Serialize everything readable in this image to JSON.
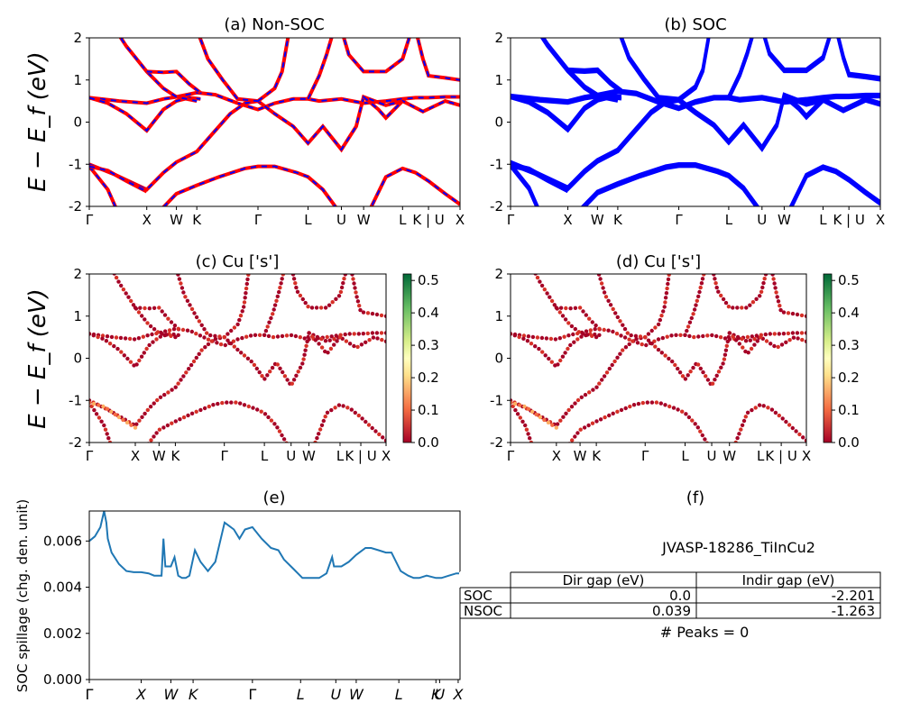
{
  "band_panels": [
    {
      "id": "a",
      "title": "(a) Non-SOC",
      "style": "nonsoc",
      "ylabel": "E − E_f (eV)",
      "ylim": [
        -2,
        2
      ],
      "yticks": [
        -2,
        -1,
        0,
        1,
        2
      ],
      "kpath": [
        "Γ",
        "X",
        "W",
        "K",
        "Γ",
        "L",
        "U",
        "W",
        "L",
        "K | U",
        "X"
      ]
    },
    {
      "id": "b",
      "title": "(b) SOC",
      "style": "soc",
      "ylabel": "",
      "ylim": [
        -2,
        2
      ],
      "yticks": [
        -2,
        -1,
        0,
        1,
        2
      ],
      "kpath": [
        "Γ",
        "X",
        "W",
        "K",
        "Γ",
        "L",
        "U",
        "W",
        "L",
        "K | U",
        "X"
      ]
    },
    {
      "id": "c",
      "title": "(c)  Cu ['s']",
      "style": "proj",
      "ylabel": "E − E_f (eV)",
      "ylim": [
        -2,
        2
      ],
      "yticks": [
        -2,
        -1,
        0,
        1,
        2
      ],
      "kpath": [
        "Γ",
        "X",
        "W",
        "K",
        "Γ",
        "L",
        "U",
        "W",
        "L",
        "K | U",
        "X"
      ],
      "colorbar_ticks": [
        "0.0",
        "0.1",
        "0.2",
        "0.3",
        "0.4",
        "0.5"
      ]
    },
    {
      "id": "d",
      "title": "(d) Cu ['s']",
      "style": "proj",
      "ylabel": "",
      "ylim": [
        -2,
        2
      ],
      "yticks": [
        -2,
        -1,
        0,
        1,
        2
      ],
      "kpath": [
        "Γ",
        "X",
        "W",
        "K",
        "Γ",
        "L",
        "U",
        "W",
        "L",
        "K | U",
        "X"
      ],
      "colorbar_ticks": [
        "0.0",
        "0.1",
        "0.2",
        "0.3",
        "0.4",
        "0.5"
      ]
    }
  ],
  "chart_data": [
    {
      "type": "line",
      "title": "(a) Non-SOC",
      "ylabel": "E − E_f (eV)",
      "ylim": [
        -2,
        2
      ],
      "x_ticks": [
        "Γ",
        "X",
        "W",
        "K",
        "Γ",
        "L",
        "U",
        "W",
        "L",
        "K | U",
        "X"
      ],
      "series": [
        {
          "values_by_tick": [
            0.58,
            0.45,
            0.6,
            0.7,
            0.3,
            0.55,
            0.55,
            0.45,
            0.55,
            0.58,
            0.6
          ]
        },
        {
          "values_by_tick": [
            -1.0,
            -1.6,
            -1.2,
            -0.7,
            0.5,
            -0.5,
            -0.65,
            0.6,
            -1.1,
            -1.3,
            -1.95
          ]
        }
      ]
    },
    {
      "type": "line",
      "title": "(b) SOC",
      "ylim": [
        -2,
        2
      ],
      "x_ticks": [
        "Γ",
        "X",
        "W",
        "K",
        "Γ",
        "L",
        "U",
        "W",
        "L",
        "K | U",
        "X"
      ]
    },
    {
      "type": "scatter",
      "title": "(c)  Cu ['s']",
      "ylim": [
        -2,
        2
      ],
      "colorbar_range": [
        0.0,
        0.5
      ]
    },
    {
      "type": "scatter",
      "title": "(d) Cu ['s']",
      "ylim": [
        -2,
        2
      ],
      "colorbar_range": [
        0.0,
        0.5
      ]
    },
    {
      "type": "line",
      "title": "(e)",
      "ylabel": "SOC spillage (chg. den. unit)",
      "ylim": [
        0.0,
        0.0073
      ],
      "yticks": [
        "0.000",
        "0.002",
        "0.004",
        "0.006"
      ],
      "x_ticks": [
        "Γ",
        "X",
        "W",
        "K",
        "Γ",
        "L",
        "U",
        "W",
        "L",
        "K",
        "U",
        "X"
      ],
      "x": [
        0,
        0.015,
        0.03,
        0.04,
        0.046,
        0.05,
        0.06,
        0.08,
        0.1,
        0.12,
        0.14,
        0.16,
        0.175,
        0.195,
        0.2,
        0.205,
        0.21,
        0.22,
        0.23,
        0.24,
        0.25,
        0.26,
        0.27,
        0.285,
        0.3,
        0.31,
        0.32,
        0.34,
        0.365,
        0.39,
        0.405,
        0.42,
        0.44,
        0.465,
        0.49,
        0.51,
        0.525,
        0.55,
        0.575,
        0.595,
        0.62,
        0.64,
        0.655,
        0.66,
        0.68,
        0.7,
        0.72,
        0.745,
        0.76,
        0.78,
        0.8,
        0.815,
        0.84,
        0.86,
        0.875,
        0.89,
        0.91,
        0.935,
        0.95,
        0.97,
        0.99,
        1.0
      ],
      "values": [
        0.006,
        0.0062,
        0.0066,
        0.0073,
        0.0068,
        0.0061,
        0.0055,
        0.005,
        0.0047,
        0.00465,
        0.00465,
        0.0046,
        0.0045,
        0.0045,
        0.0061,
        0.0049,
        0.0049,
        0.0049,
        0.0053,
        0.0045,
        0.0044,
        0.0044,
        0.0045,
        0.0056,
        0.0051,
        0.0049,
        0.0047,
        0.0051,
        0.0068,
        0.0065,
        0.0061,
        0.0065,
        0.0066,
        0.0061,
        0.0057,
        0.0056,
        0.0052,
        0.0048,
        0.0044,
        0.0044,
        0.0044,
        0.0046,
        0.0053,
        0.0049,
        0.0049,
        0.0051,
        0.0054,
        0.0057,
        0.0057,
        0.0056,
        0.0055,
        0.0055,
        0.0047,
        0.0045,
        0.0044,
        0.0044,
        0.0045,
        0.0044,
        0.0044,
        0.0045,
        0.0046,
        0.0046
      ]
    },
    {
      "type": "table",
      "title": "(f)",
      "material": "JVASP-18286_TiInCu2",
      "columns": [
        "",
        "Dir gap (eV)",
        "Indir gap (eV)"
      ],
      "rows": [
        [
          "SOC",
          "0.0",
          "-2.201"
        ],
        [
          "NSOC",
          "0.039",
          "-1.263"
        ]
      ],
      "peaks": "# Peaks = 0"
    }
  ],
  "spillage": {
    "title": "(e)",
    "ylabel": "SOC spillage (chg. den. unit)",
    "yticks": [
      "0.000",
      "0.002",
      "0.004",
      "0.006"
    ],
    "line_color": "#1f77b4"
  },
  "table_panel": {
    "title": "(f)",
    "material": "JVASP-18286_TiInCu2",
    "headers": [
      "",
      "Dir gap (eV)",
      "Indir gap (eV)"
    ],
    "rows": [
      [
        "SOC",
        "0.0",
        "-2.201"
      ],
      [
        "NSOC",
        "0.039",
        "-1.263"
      ]
    ],
    "peaks": "# Peaks = 0"
  },
  "colors": {
    "nonsoc_base": "#ff0000",
    "nonsoc_dash": "#0000ff",
    "soc": "#0000ff",
    "spillage": "#1f77b4"
  }
}
